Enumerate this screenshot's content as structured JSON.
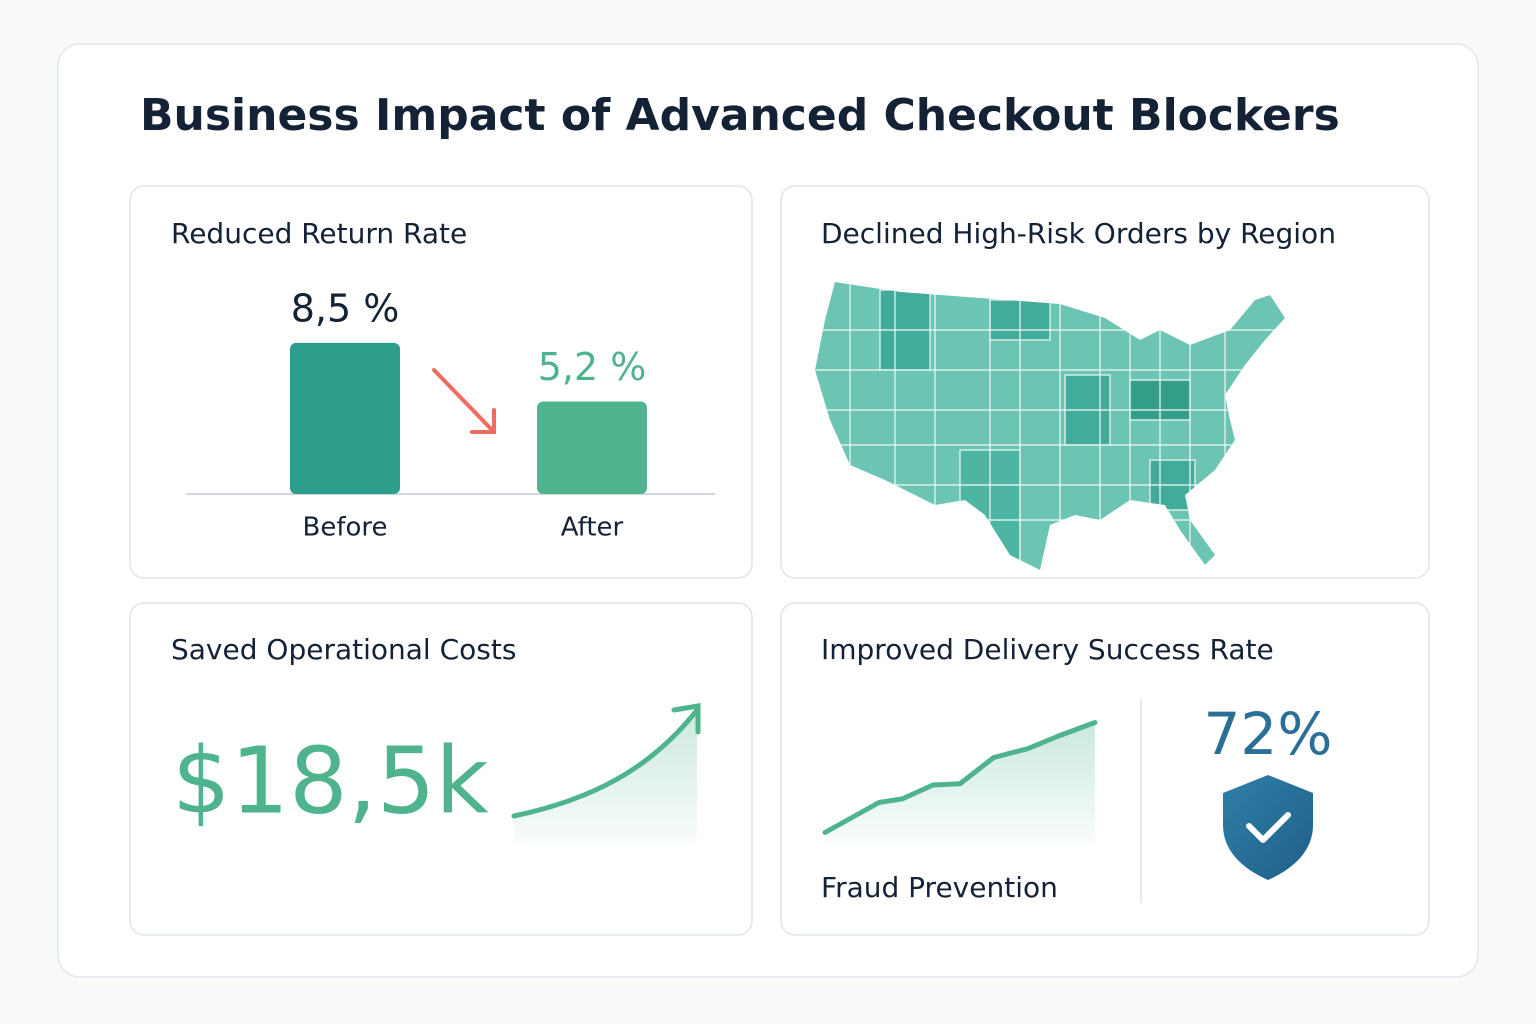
{
  "title": "Business Impact of Advanced Checkout Blockers",
  "chart_data": [
    {
      "type": "bar",
      "title": "Reduced Return Rate",
      "categories": [
        "Before",
        "After"
      ],
      "values": [
        8.5,
        5.2
      ],
      "value_labels": [
        "8,5 %",
        "5,2 %"
      ],
      "colors": [
        "#2e9e8c",
        "#4fb48e"
      ],
      "label_colors": [
        "#142236",
        "#4fb48e"
      ],
      "ylim": [
        0,
        9
      ]
    },
    {
      "type": "line",
      "title": "Improved Delivery Success Rate",
      "xlabel": "Fraud Prevention",
      "x": [
        0,
        1.6,
        2.3,
        3.2,
        4,
        5,
        6,
        6.9,
        8
      ],
      "values": [
        1.0,
        3.4,
        3.7,
        4.8,
        4.9,
        7.0,
        7.7,
        8.7,
        9.8
      ],
      "color": "#4fb48e",
      "xlim": [
        0,
        8
      ],
      "ylim": [
        0,
        10
      ]
    }
  ],
  "map": {
    "title": "Declined High-Risk Orders by Region"
  },
  "costs": {
    "title": "Saved Operational Costs",
    "value": "$18,5k"
  },
  "delivery": {
    "rate": "72%"
  }
}
